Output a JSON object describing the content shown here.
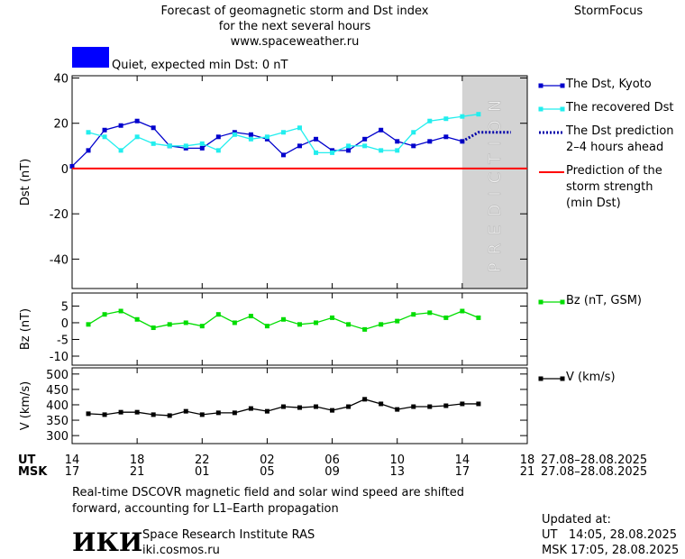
{
  "header": {
    "title_lines": [
      "Forecast of geomagnetic storm and Dst index",
      "for the next several hours",
      "www.spaceweather.ru"
    ],
    "brand": "StormFocus"
  },
  "status": {
    "color": "#0000ff",
    "text": "Quiet, expected min Dst: 0 nT"
  },
  "chart_data": [
    {
      "type": "line",
      "ylabel": "Dst (nT)",
      "xlim": [
        0,
        28
      ],
      "ylim": [
        -53,
        41
      ],
      "yticks": [
        40,
        20,
        0,
        -20,
        -40
      ],
      "region": {
        "x": [
          24,
          28
        ],
        "label": "PREDICTION",
        "color": "#d3d3d3"
      },
      "series": [
        {
          "name": "The Dst, Kyoto",
          "color": "#0000cc",
          "style": "markers",
          "x": [
            0,
            1,
            2,
            3,
            4,
            5,
            6,
            7,
            8,
            9,
            10,
            11,
            12,
            13,
            14,
            15,
            16,
            17,
            18,
            19,
            20,
            21,
            22,
            23,
            24
          ],
          "values": [
            1,
            8,
            17,
            19,
            21,
            18,
            10,
            9,
            9,
            14,
            16,
            15,
            13,
            6,
            10,
            13,
            8,
            8,
            13,
            17,
            12,
            10,
            12,
            14,
            12
          ]
        },
        {
          "name": "The recovered Dst",
          "color": "#22eeee",
          "style": "markers",
          "x": [
            1,
            2,
            3,
            4,
            5,
            6,
            7,
            8,
            9,
            10,
            11,
            12,
            13,
            14,
            15,
            16,
            17,
            18,
            19,
            20,
            21,
            22,
            23,
            24,
            25
          ],
          "values": [
            16,
            14,
            8,
            14,
            11,
            10,
            10,
            11,
            8,
            15,
            13,
            14,
            16,
            18,
            7,
            7,
            10,
            10,
            8,
            8,
            16,
            21,
            22,
            23,
            24
          ]
        },
        {
          "name": "The Dst prediction\n2–4 hours ahead",
          "color": "#0000aa",
          "style": "dotted",
          "x": [
            24,
            25,
            27
          ],
          "values": [
            12,
            16,
            16
          ]
        },
        {
          "name": "Prediction of the\nstorm strength\n(min Dst)",
          "color": "#ff0000",
          "style": "hline",
          "values": [
            0
          ]
        }
      ]
    },
    {
      "type": "line",
      "ylabel": "Bz (nT)",
      "xlim": [
        0,
        28
      ],
      "ylim": [
        -12.7,
        8.9
      ],
      "yticks": [
        5,
        0,
        -5,
        -10
      ],
      "series": [
        {
          "name": "Bz (nT, GSM)",
          "color": "#00dd00",
          "style": "markers",
          "x": [
            1,
            2,
            3,
            4,
            5,
            6,
            7,
            8,
            9,
            10,
            11,
            12,
            13,
            14,
            15,
            16,
            17,
            18,
            19,
            20,
            21,
            22,
            23,
            24,
            25
          ],
          "values": [
            -0.5,
            2.5,
            3.5,
            1,
            -1.5,
            -0.5,
            0,
            -1,
            2.5,
            0,
            2,
            -1,
            1,
            -0.5,
            0,
            1.5,
            -0.5,
            -2,
            -0.5,
            0.5,
            2.5,
            3,
            1.5,
            3.5,
            1.5
          ]
        }
      ]
    },
    {
      "type": "line",
      "ylabel": "V (km/s)",
      "xlim": [
        0,
        28
      ],
      "ylim": [
        274,
        520
      ],
      "yticks": [
        500,
        450,
        400,
        350,
        300
      ],
      "xlabel": "UT",
      "x2label": "MSK",
      "x_range": "27.08–28.08.2025",
      "x2_range": "27.08–28.08.2025",
      "xticks": [
        {
          "value": 0,
          "label": "14"
        },
        {
          "value": 4,
          "label": "18"
        },
        {
          "value": 8,
          "label": "22"
        },
        {
          "value": 12,
          "label": "02"
        },
        {
          "value": 16,
          "label": "06"
        },
        {
          "value": 20,
          "label": "10"
        },
        {
          "value": 24,
          "label": "14"
        },
        {
          "value": 28,
          "label": "18"
        }
      ],
      "xticks2": [
        {
          "value": 0,
          "label": "17"
        },
        {
          "value": 4,
          "label": "21"
        },
        {
          "value": 8,
          "label": "01"
        },
        {
          "value": 12,
          "label": "05"
        },
        {
          "value": 16,
          "label": "09"
        },
        {
          "value": 20,
          "label": "13"
        },
        {
          "value": 24,
          "label": "17"
        },
        {
          "value": 28,
          "label": "21"
        }
      ],
      "series": [
        {
          "name": "V (km/s)",
          "color": "#000000",
          "style": "markers",
          "x": [
            1,
            2,
            3,
            4,
            5,
            6,
            7,
            8,
            9,
            10,
            11,
            12,
            13,
            14,
            15,
            16,
            17,
            18,
            19,
            20,
            21,
            22,
            23,
            24,
            25
          ],
          "values": [
            371,
            368,
            376,
            376,
            368,
            365,
            379,
            368,
            374,
            374,
            388,
            379,
            394,
            391,
            394,
            382,
            394,
            418,
            403,
            385,
            394,
            394,
            397,
            403,
            403
          ]
        }
      ]
    }
  ],
  "footer": {
    "note": "Real-time DSCOVR magnetic field and solar wind speed are shifted\nforward, accounting for L1–Earth propagation",
    "logo": "ИКИ",
    "institute": "Space Research Institute RAS",
    "site": "iki.cosmos.ru",
    "updated_label": "Updated at:",
    "updated_ut": "UT   14:05, 28.08.2025",
    "updated_msk": "MSK 17:05, 28.08.2025"
  }
}
